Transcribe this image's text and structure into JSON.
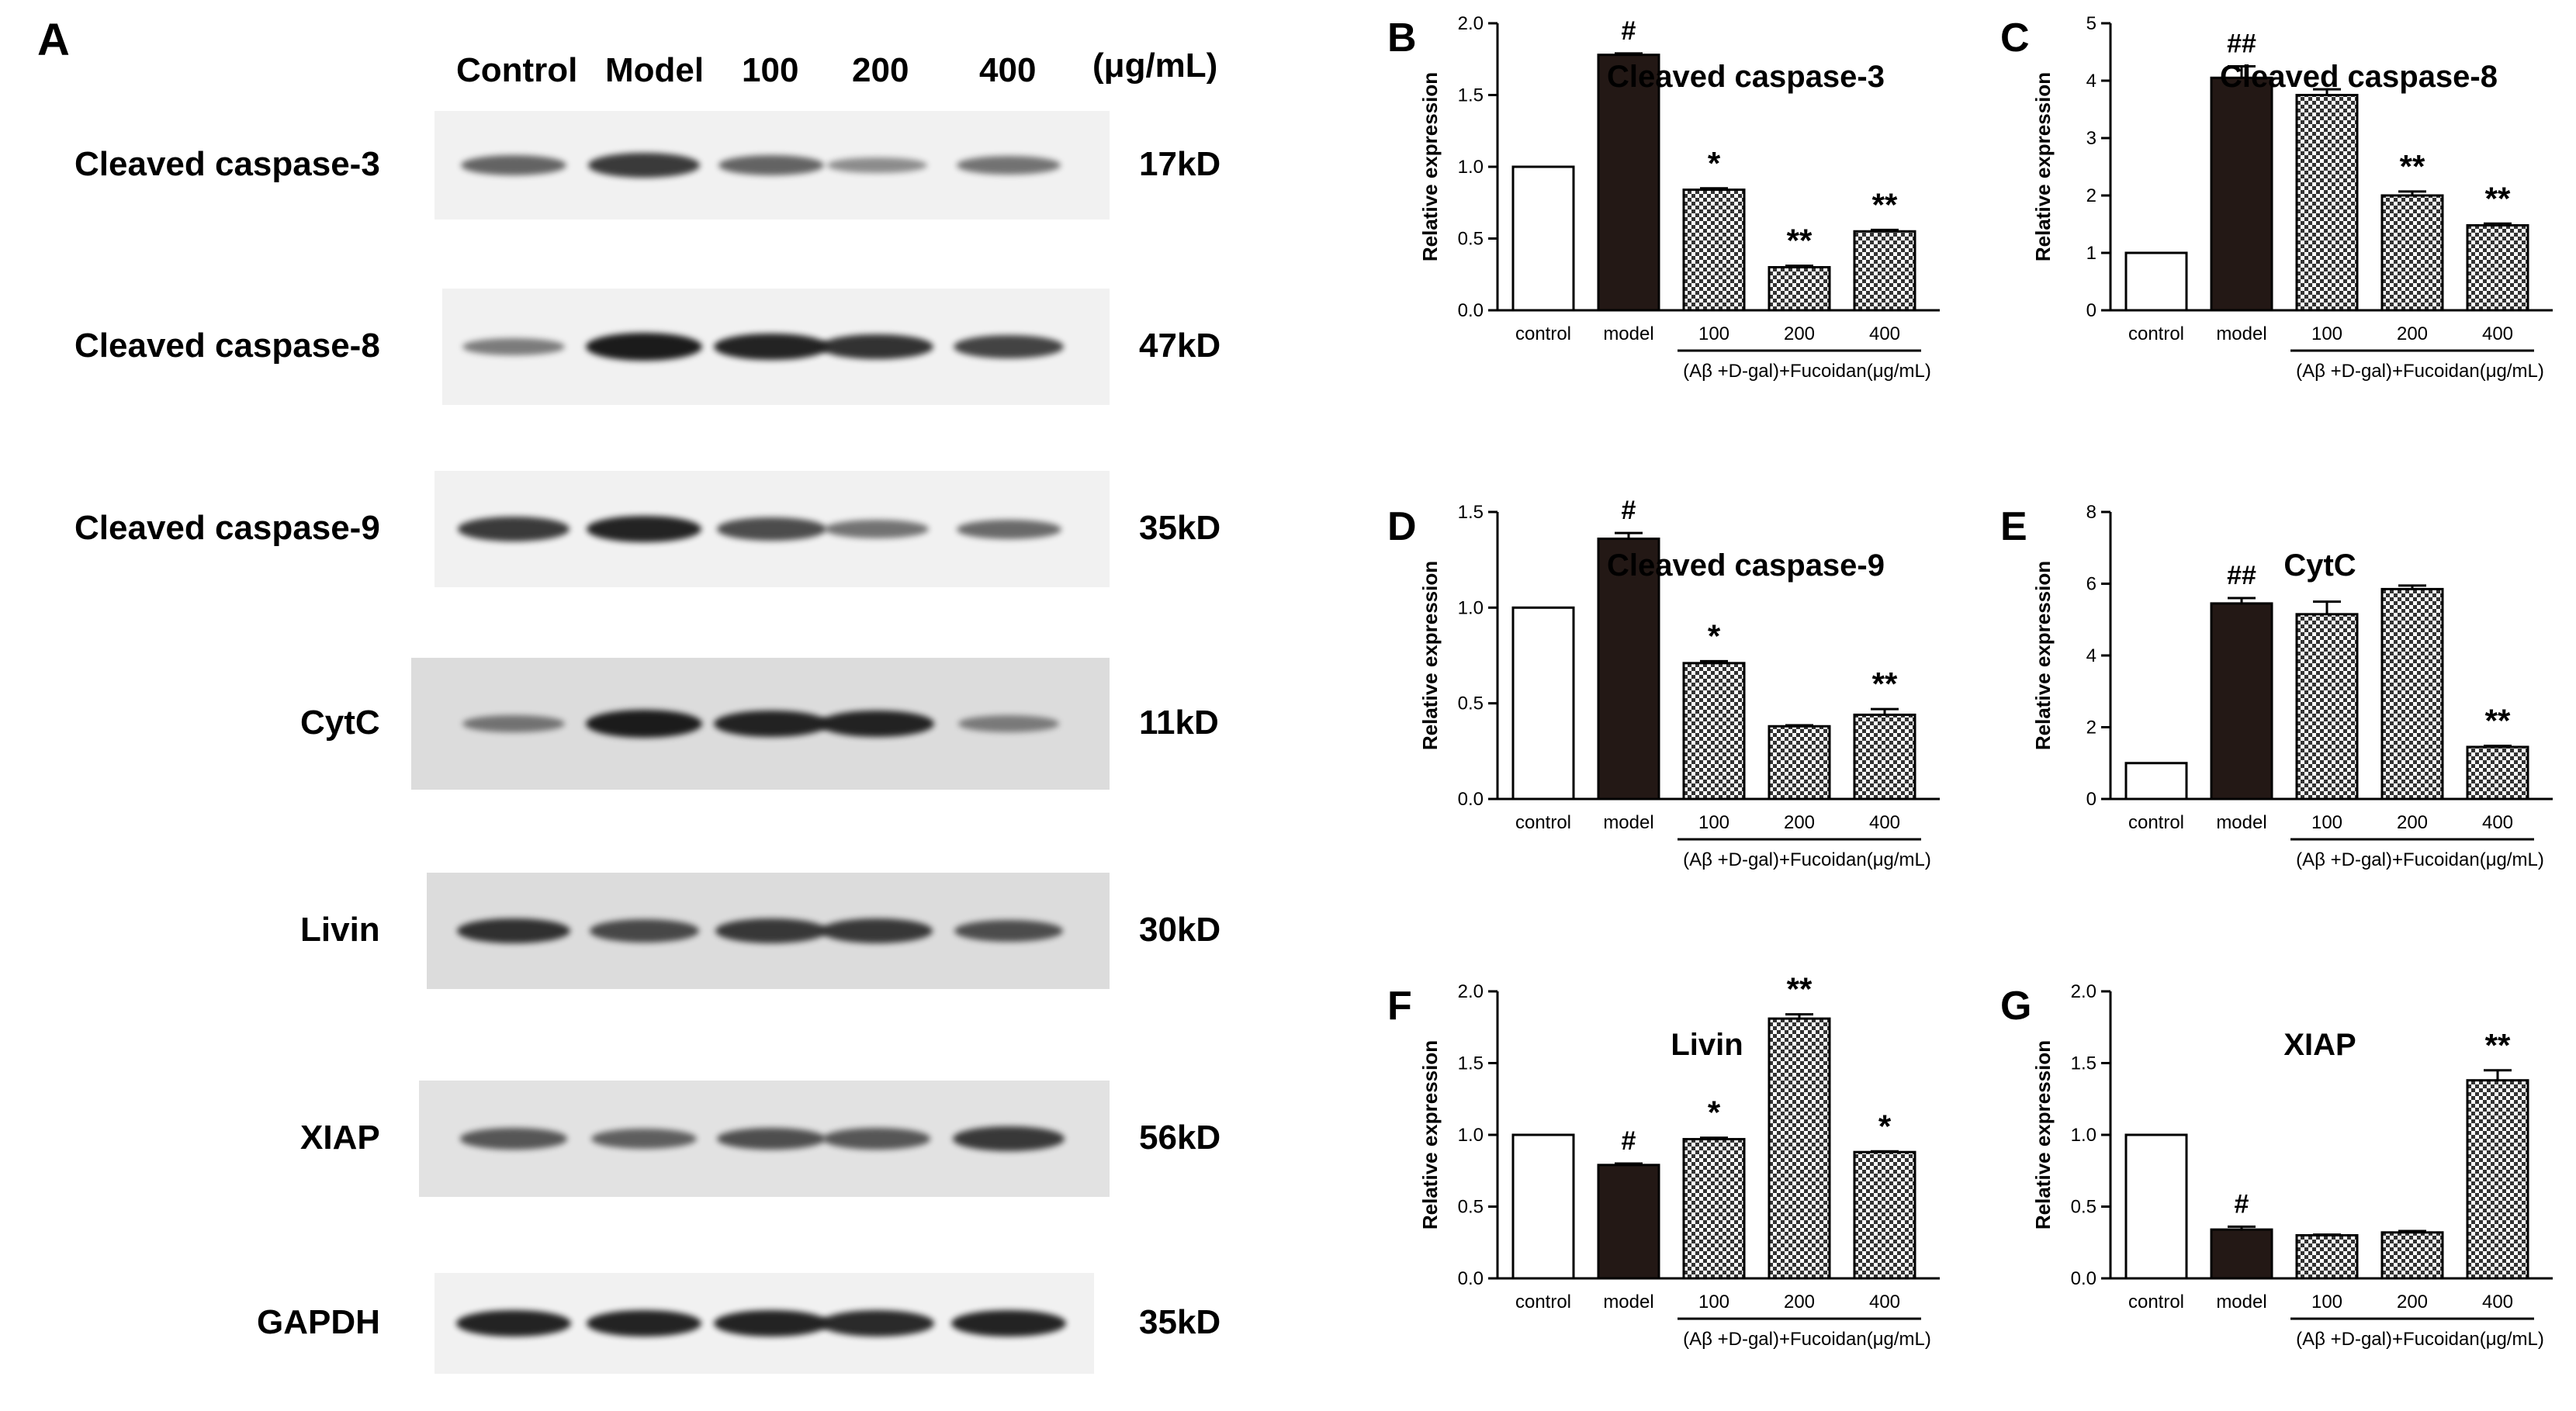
{
  "panel_a": {
    "letter": "A",
    "lanes": [
      "Control",
      "Model",
      "100",
      "200",
      "400"
    ],
    "unit": "(μg/mL)",
    "blots": [
      {
        "name": "Cleaved caspase-3",
        "kd": "17kD",
        "intensity": [
          0.55,
          0.8,
          0.55,
          0.3,
          0.45
        ]
      },
      {
        "name": "Cleaved caspase-8",
        "kd": "47kD",
        "intensity": [
          0.4,
          1.0,
          0.95,
          0.85,
          0.75
        ]
      },
      {
        "name": "Cleaved caspase-9",
        "kd": "35kD",
        "intensity": [
          0.8,
          0.95,
          0.7,
          0.45,
          0.5
        ]
      },
      {
        "name": "CytC",
        "kd": "11kD",
        "intensity": [
          0.4,
          1.0,
          0.95,
          0.95,
          0.35
        ]
      },
      {
        "name": "Livin",
        "kd": "30kD",
        "intensity": [
          0.85,
          0.7,
          0.8,
          0.8,
          0.65
        ]
      },
      {
        "name": "XIAP",
        "kd": "56kD",
        "intensity": [
          0.6,
          0.55,
          0.65,
          0.6,
          0.8
        ]
      },
      {
        "name": "GAPDH",
        "kd": "35kD",
        "intensity": [
          0.95,
          0.95,
          0.95,
          0.9,
          0.95
        ]
      }
    ]
  },
  "chart_data": [
    {
      "letter": "B",
      "type": "bar",
      "title": "Cleaved caspase-3",
      "ylabel": "Relative expression",
      "categories": [
        "control",
        "model",
        "100",
        "200",
        "400"
      ],
      "values": [
        1.0,
        1.78,
        0.84,
        0.3,
        0.55
      ],
      "errors": [
        0,
        0.01,
        0.01,
        0.01,
        0.01
      ],
      "annotations": [
        "",
        "#",
        "*",
        "**",
        "**"
      ],
      "ylim": [
        0,
        2.0
      ],
      "yticks": [
        "0.0",
        "0.5",
        "1.0",
        "1.5",
        "2.0"
      ],
      "group_label": "(Aβ +D-gal)+Fucoidan(μg/mL)"
    },
    {
      "letter": "C",
      "type": "bar",
      "title": "Cleaved caspase-8",
      "ylabel": "Relative expression",
      "categories": [
        "control",
        "model",
        "100",
        "200",
        "400"
      ],
      "values": [
        1.0,
        4.05,
        3.75,
        2.0,
        1.48
      ],
      "errors": [
        0,
        0.2,
        0.1,
        0.07,
        0.03
      ],
      "annotations": [
        "",
        "##",
        "",
        "**",
        "**"
      ],
      "ylim": [
        0,
        5
      ],
      "yticks": [
        "0",
        "1",
        "2",
        "3",
        "4",
        "5"
      ],
      "group_label": "(Aβ +D-gal)+Fucoidan(μg/mL)"
    },
    {
      "letter": "D",
      "type": "bar",
      "title": "Cleaved caspase-9",
      "ylabel": "Relative expression",
      "categories": [
        "control",
        "model",
        "100",
        "200",
        "400"
      ],
      "values": [
        1.0,
        1.36,
        0.71,
        0.38,
        0.44
      ],
      "errors": [
        0,
        0.03,
        0.01,
        0.005,
        0.03
      ],
      "annotations": [
        "",
        "#",
        "*",
        "",
        "**"
      ],
      "ylim": [
        0,
        1.5
      ],
      "yticks": [
        "0.0",
        "0.5",
        "1.0",
        "1.5"
      ],
      "group_label": "(Aβ +D-gal)+Fucoidan(μg/mL)"
    },
    {
      "letter": "E",
      "type": "bar",
      "title": "CytC",
      "ylabel": "Relative expression",
      "categories": [
        "control",
        "model",
        "100",
        "200",
        "400"
      ],
      "values": [
        1.0,
        5.45,
        5.15,
        5.85,
        1.45
      ],
      "errors": [
        0,
        0.15,
        0.35,
        0.1,
        0.03
      ],
      "annotations": [
        "",
        "##",
        "",
        "",
        "**"
      ],
      "ylim": [
        0,
        8
      ],
      "yticks": [
        "0",
        "2",
        "4",
        "6",
        "8"
      ],
      "group_label": "(Aβ +D-gal)+Fucoidan(μg/mL)"
    },
    {
      "letter": "F",
      "type": "bar",
      "title": "Livin",
      "ylabel": "Relative expression",
      "categories": [
        "control",
        "model",
        "100",
        "200",
        "400"
      ],
      "values": [
        1.0,
        0.79,
        0.97,
        1.81,
        0.88
      ],
      "errors": [
        0,
        0.01,
        0.01,
        0.03,
        0.005
      ],
      "annotations": [
        "",
        "#",
        "*",
        "**",
        "*"
      ],
      "ylim": [
        0,
        2.0
      ],
      "yticks": [
        "0.0",
        "0.5",
        "1.0",
        "1.5",
        "2.0"
      ],
      "group_label": "(Aβ +D-gal)+Fucoidan(μg/mL)"
    },
    {
      "letter": "G",
      "type": "bar",
      "title": "XIAP",
      "ylabel": "Relative expression",
      "categories": [
        "control",
        "model",
        "100",
        "200",
        "400"
      ],
      "values": [
        1.0,
        0.34,
        0.3,
        0.32,
        1.38
      ],
      "errors": [
        0,
        0.02,
        0.005,
        0.01,
        0.07
      ],
      "annotations": [
        "",
        "#",
        "",
        "",
        "**"
      ],
      "ylim": [
        0,
        2.0
      ],
      "yticks": [
        "0.0",
        "0.5",
        "1.0",
        "1.5",
        "2.0"
      ],
      "group_label": "(Aβ +D-gal)+Fucoidan(μg/mL)"
    }
  ]
}
